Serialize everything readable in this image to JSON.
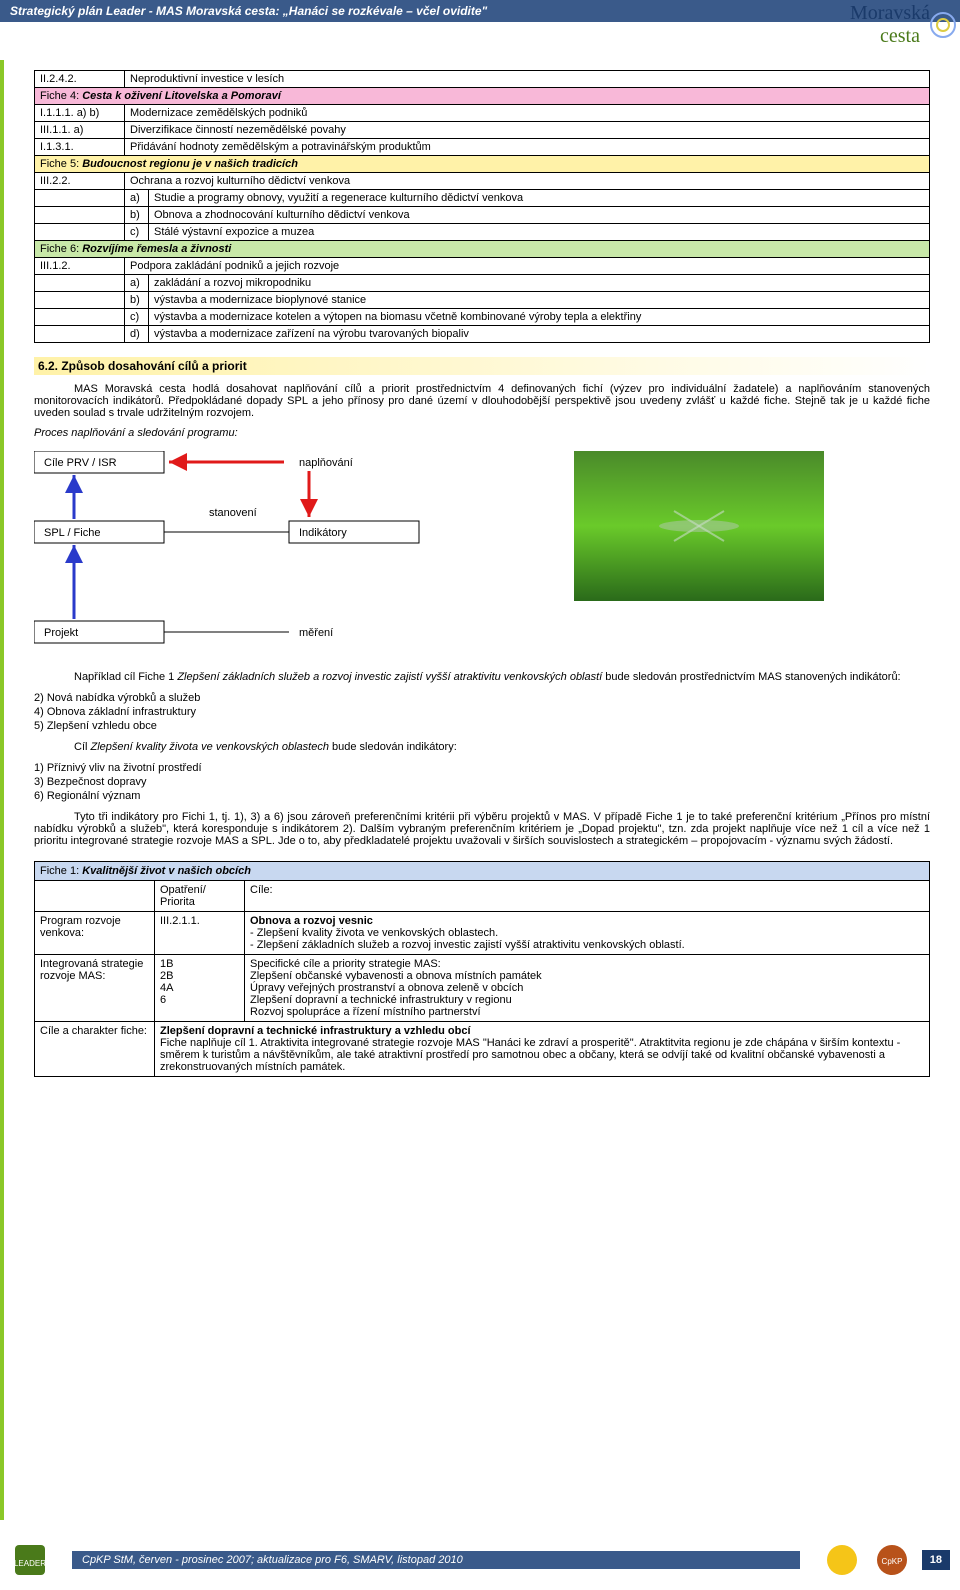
{
  "header": {
    "title": "Strategický plán Leader - MAS Moravská cesta: „Hanáci se rozkévale – včel ovidite\""
  },
  "logo": {
    "line1": "Moravská",
    "line2": "cesta"
  },
  "mainTable": {
    "rows": [
      {
        "code": "II.2.4.2.",
        "text": "Neproduktivní investice v lesích"
      },
      {
        "fiche": true,
        "color": "pink",
        "label": "Fiche 4:",
        "title": "Cesta k oživení Litovelska a Pomoraví"
      },
      {
        "code": "I.1.1.1. a) b)",
        "text": "Modernizace zemědělských podniků"
      },
      {
        "code": "III.1.1. a)",
        "text": "Diverzifikace činností nezemědělské povahy"
      },
      {
        "code": "I.1.3.1.",
        "text": "Přidávání hodnoty zemědělským a potravinářským produktům"
      },
      {
        "fiche": true,
        "color": "yellow",
        "label": "Fiche 5:",
        "title": "Budoucnost regionu je v našich tradicích"
      },
      {
        "code": "III.2.2.",
        "text": "Ochrana a rozvoj kulturního dědictví venkova"
      },
      {
        "sub": "a)",
        "text": "Studie a programy obnovy, využití a regenerace kulturního dědictví venkova"
      },
      {
        "sub": "b)",
        "text": "Obnova a zhodnocování kulturního dědictví venkova"
      },
      {
        "sub": "c)",
        "text": "Stálé výstavní expozice a muzea"
      },
      {
        "fiche": true,
        "color": "green",
        "label": "Fiche 6:",
        "title": "Rozvíjíme řemesla a živnosti"
      },
      {
        "code": "III.1.2.",
        "text": "Podpora zakládání podniků a jejich rozvoje"
      },
      {
        "sub": "a)",
        "text": "zakládání a rozvoj mikropodniku"
      },
      {
        "sub": "b)",
        "text": "výstavba a modernizace bioplynové stanice"
      },
      {
        "sub": "c)",
        "text": "výstavba a modernizace kotelen a výtopen na biomasu včetně kombinované výroby tepla a elektřiny"
      },
      {
        "sub": "d)",
        "text": "výstavba a modernizace zařízení na výrobu tvarovaných biopaliv"
      }
    ]
  },
  "section62": {
    "heading": "6.2. Způsob dosahování cílů a priorit",
    "para1": "MAS Moravská cesta hodlá dosahovat naplňování cílů a priorit prostřednictvím 4 definovaných fichí (výzev pro individuální žadatele) a naplňováním stanovených monitorovacích indikátorů. Předpokládané dopady SPL a jeho přínosy pro dané území v dlouhodobější perspektivě jsou uvedeny zvlášť u každé fiche. Stejně tak je u každé fiche uveden soulad s trvale udržitelným rozvojem.",
    "procesLabel": "Proces naplňování a sledování programu:",
    "flow": {
      "box1": "Cíle PRV / ISR",
      "box2": "SPL / Fiche",
      "box3": "Projekt",
      "right1": "naplňování",
      "right2": "Indikátory",
      "right3": "měření",
      "mid": "stanovení"
    },
    "para2_lead": "Například cíl Fiche 1 ",
    "para2_ital": "Zlepšení základních služeb a rozvoj investic zajistí vyšší atraktivitu venkovských oblastí",
    "para2_end": " bude sledován prostřednictvím MAS stanovených indikátorů:",
    "indList1": [
      "2) Nová nabídka výrobků a služeb",
      "4) Obnova základní infrastruktury",
      "5) Zlepšení vzhledu obce"
    ],
    "cil2_lead": "Cíl ",
    "cil2_ital": "Zlepšení kvality života ve venkovských oblastech",
    "cil2_end": " bude sledován indikátory:",
    "indList2": [
      "1) Příznivý vliv na životní prostředí",
      "3) Bezpečnost dopravy",
      "6) Regionální význam"
    ],
    "para3": "Tyto tři indikátory pro Fichi 1, tj. 1), 3) a 6) jsou zároveň preferenčními kritérii při výběru projektů v MAS. V případě Fiche 1 je to také preferenční kritérium „Přínos pro místní nabídku výrobků a služeb\", která koresponduje s indikátorem 2). Dalším vybraným preferenčním kritériem je „Dopad projektu\", tzn. zda projekt naplňuje více než 1 cíl a více než 1 prioritu integrované strategie rozvoje MAS a SPL. Jde o to, aby předkladatelé projektu uvažovali v širších souvislostech a strategickém – propojovacím - významu svých žádostí."
  },
  "ficheDetail": {
    "header": {
      "label": "Fiche 1:",
      "title": "Kvalitnější život v našich obcích"
    },
    "col2Head": "Opatření/ Priorita",
    "col3Head": "Cíle:",
    "rowA": {
      "c1": "Program rozvoje venkova:",
      "c2": "III.2.1.1.",
      "c3_bold": "Obnova a rozvoj vesnic",
      "c3_lines": [
        "- Zlepšení kvality života ve venkovských oblastech.",
        "- Zlepšení základních služeb a rozvoj investic zajistí vyšší atraktivitu venkovských oblastí."
      ]
    },
    "rowB": {
      "c1": "Integrovaná strategie rozvoje MAS:",
      "c2_lines": [
        "1B",
        "2B",
        "4A",
        "6"
      ],
      "c3_lines": [
        "Specifické cíle a priority strategie MAS:",
        "Zlepšení občanské vybavenosti a obnova místních památek",
        "Úpravy veřejných prostranství a obnova zeleně v obcích",
        "Zlepšení dopravní a technické infrastruktury v regionu",
        "Rozvoj spolupráce a řízení místního partnerství"
      ]
    },
    "rowC": {
      "c1": "Cíle a charakter fiche:",
      "c3_bold": "Zlepšení dopravní a technické infrastruktury a vzhledu obcí",
      "c3_text": "Fiche naplňuje cíl 1. Atraktivita integrované strategie rozvoje MAS \"Hanáci ke zdraví a prosperitě\". Atraktitvita regionu je zde chápána v širším kontextu - směrem k turistům a návštěvníkům, ale také atraktivní prostředí pro samotnou obec a občany, která se odvíjí také od kvalitní občanské vybavenosti a zrekonstruovaných místních památek."
    }
  },
  "footer": {
    "text": "CpKP StM, červen - prosinec 2007; aktualizace pro F6, SMARV, listopad 2010",
    "page": "18"
  },
  "colors": {
    "headerBlue": "#3a5a8a",
    "greenBar": "#8ac828",
    "pink": "#f8b8d8",
    "yellow": "#fff2a8",
    "green": "#c8e8a8",
    "blueCell": "#c8d8f0"
  }
}
